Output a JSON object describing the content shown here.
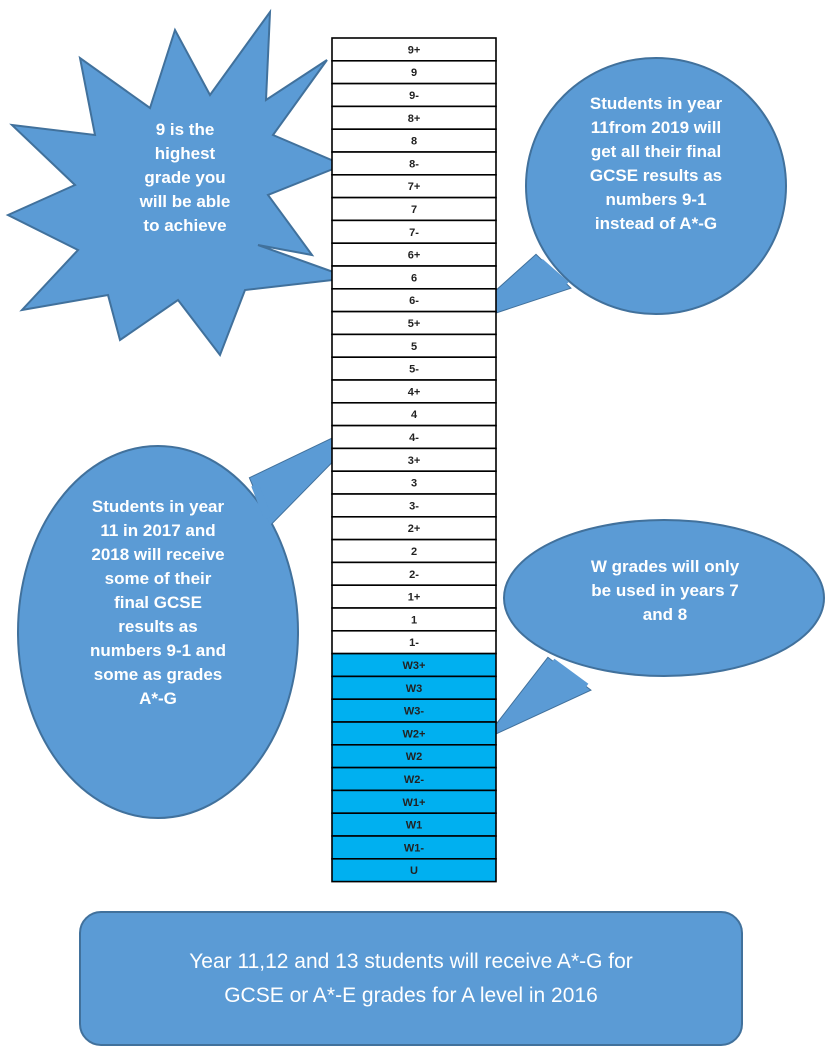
{
  "grades": {
    "white": [
      "9+",
      "9",
      "9-",
      "8+",
      "8",
      "8-",
      "7+",
      "7",
      "7-",
      "6+",
      "6",
      "6-",
      "5+",
      "5",
      "5-",
      "4+",
      "4",
      "4-",
      "3+",
      "3",
      "3-",
      "2+",
      "2",
      "2-",
      "1+",
      "1",
      "1-"
    ],
    "blue": [
      "W3+",
      "W3",
      "W3-",
      "W2+",
      "W2",
      "W2-",
      "W1+",
      "W1",
      "W1-",
      "U"
    ]
  },
  "callouts": {
    "highest": "9 is the\nhighest\ngrade you\nwill be able\nto achieve",
    "year11_2019": "Students in year\n11from 2019 will\nget all their final\nGCSE results as\nnumbers 9-1\ninstead of A*-G",
    "year11_2017": "Students in year\n11 in 2017 and\n2018 will receive\nsome of their\nfinal GCSE\nresults as\nnumbers 9-1 and\nsome as grades\nA*-G",
    "w_grades": "W grades will only\nbe used in years 7\nand 8"
  },
  "banner": "Year 11,12 and 13 students will receive A*-G for\nGCSE or A*-E grades for A level in 2016",
  "colors": {
    "shape_fill": "#5b9bd5",
    "shape_stroke": "#41719c",
    "w_grade_fill": "#00b0f0",
    "cell_border": "#000000"
  }
}
